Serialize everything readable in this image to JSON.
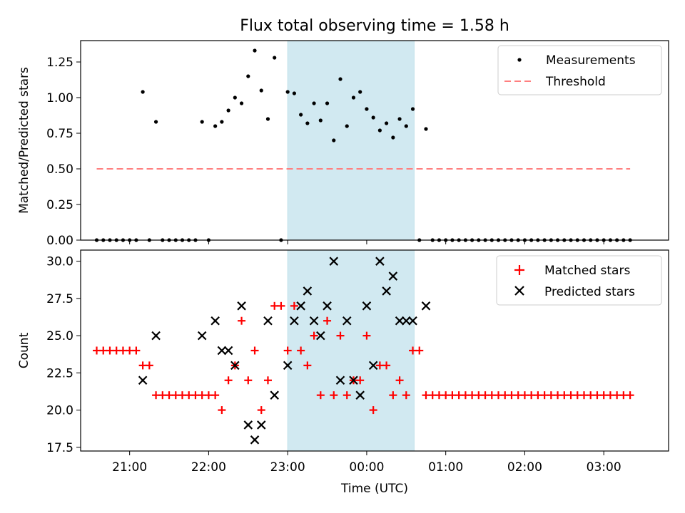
{
  "figure": {
    "title": "Flux total observing time = 1.58 h",
    "xlabel": "Time (UTC)",
    "x_ticks": [
      "21:00",
      "22:00",
      "23:00",
      "00:00",
      "01:00",
      "02:00",
      "03:00"
    ],
    "shaded_span": [
      "23:00",
      "00:36"
    ],
    "shade_color": "#add8e6"
  },
  "chart_data": [
    {
      "type": "scatter",
      "title": "Flux total observing time = 1.58 h",
      "xlabel": "",
      "ylabel": "Matched/Predicted stars",
      "ylim": [
        0,
        1.4
      ],
      "y_ticks": [
        "0.00",
        "0.25",
        "0.50",
        "0.75",
        "1.00",
        "1.25"
      ],
      "legend_position": "top-right",
      "series": [
        {
          "name": "Measurements",
          "type": "scatter",
          "color": "#000000",
          "points": [
            [
              "20:35",
              0
            ],
            [
              "20:40",
              0
            ],
            [
              "20:45",
              0
            ],
            [
              "20:50",
              0
            ],
            [
              "20:55",
              0
            ],
            [
              "21:00",
              0
            ],
            [
              "21:05",
              0
            ],
            [
              "21:10",
              1.04
            ],
            [
              "21:15",
              0
            ],
            [
              "21:20",
              0.83
            ],
            [
              "21:25",
              0
            ],
            [
              "21:30",
              0
            ],
            [
              "21:35",
              0
            ],
            [
              "21:40",
              0
            ],
            [
              "21:45",
              0
            ],
            [
              "21:50",
              0
            ],
            [
              "21:55",
              0.83
            ],
            [
              "22:00",
              0
            ],
            [
              "22:05",
              0.8
            ],
            [
              "22:10",
              0.83
            ],
            [
              "22:15",
              0.91
            ],
            [
              "22:20",
              1.0
            ],
            [
              "22:25",
              0.96
            ],
            [
              "22:30",
              1.15
            ],
            [
              "22:35",
              1.33
            ],
            [
              "22:40",
              1.05
            ],
            [
              "22:45",
              0.85
            ],
            [
              "22:50",
              1.28
            ],
            [
              "22:55",
              0
            ],
            [
              "23:00",
              1.04
            ],
            [
              "23:05",
              1.03
            ],
            [
              "23:10",
              0.88
            ],
            [
              "23:15",
              0.82
            ],
            [
              "23:20",
              0.96
            ],
            [
              "23:25",
              0.84
            ],
            [
              "23:30",
              0.96
            ],
            [
              "23:35",
              0.7
            ],
            [
              "23:40",
              1.13
            ],
            [
              "23:45",
              0.8
            ],
            [
              "23:50",
              1.0
            ],
            [
              "23:55",
              1.04
            ],
            [
              "00:00",
              0.92
            ],
            [
              "00:05",
              0.86
            ],
            [
              "00:10",
              0.77
            ],
            [
              "00:15",
              0.82
            ],
            [
              "00:20",
              0.72
            ],
            [
              "00:25",
              0.85
            ],
            [
              "00:30",
              0.8
            ],
            [
              "00:35",
              0.92
            ],
            [
              "00:40",
              0
            ],
            [
              "00:45",
              0.78
            ],
            [
              "00:50",
              0
            ],
            [
              "00:55",
              0
            ],
            [
              "01:00",
              0
            ],
            [
              "01:05",
              0
            ],
            [
              "01:10",
              0
            ],
            [
              "01:15",
              0
            ],
            [
              "01:20",
              0
            ],
            [
              "01:25",
              0
            ],
            [
              "01:30",
              0
            ],
            [
              "01:35",
              0
            ],
            [
              "01:40",
              0
            ],
            [
              "01:45",
              0
            ],
            [
              "01:50",
              0
            ],
            [
              "01:55",
              0
            ],
            [
              "02:00",
              0
            ],
            [
              "02:05",
              0
            ],
            [
              "02:10",
              0
            ],
            [
              "02:15",
              0
            ],
            [
              "02:20",
              0
            ],
            [
              "02:25",
              0
            ],
            [
              "02:30",
              0
            ],
            [
              "02:35",
              0
            ],
            [
              "02:40",
              0
            ],
            [
              "02:45",
              0
            ],
            [
              "02:50",
              0
            ],
            [
              "02:55",
              0
            ],
            [
              "03:00",
              0
            ],
            [
              "03:05",
              0
            ],
            [
              "03:10",
              0
            ],
            [
              "03:15",
              0
            ],
            [
              "03:20",
              0
            ]
          ]
        },
        {
          "name": "Threshold",
          "type": "line",
          "style": "dashed",
          "color": "#ff7f7f",
          "points": [
            [
              "20:35",
              0.5
            ],
            [
              "03:20",
              0.5
            ]
          ]
        }
      ]
    },
    {
      "type": "scatter",
      "xlabel": "Time (UTC)",
      "ylabel": "Count",
      "ylim": [
        17.25,
        30.75
      ],
      "y_ticks": [
        "17.5",
        "20.0",
        "22.5",
        "25.0",
        "27.5",
        "30.0"
      ],
      "legend_position": "top-right",
      "series": [
        {
          "name": "Matched stars",
          "marker": "plus",
          "color": "#ff0000",
          "points": [
            [
              "20:35",
              24
            ],
            [
              "20:40",
              24
            ],
            [
              "20:45",
              24
            ],
            [
              "20:50",
              24
            ],
            [
              "20:55",
              24
            ],
            [
              "21:00",
              24
            ],
            [
              "21:05",
              24
            ],
            [
              "21:10",
              23
            ],
            [
              "21:15",
              23
            ],
            [
              "21:20",
              21
            ],
            [
              "21:25",
              21
            ],
            [
              "21:30",
              21
            ],
            [
              "21:35",
              21
            ],
            [
              "21:40",
              21
            ],
            [
              "21:45",
              21
            ],
            [
              "21:50",
              21
            ],
            [
              "21:55",
              21
            ],
            [
              "22:00",
              21
            ],
            [
              "22:05",
              21
            ],
            [
              "22:10",
              20
            ],
            [
              "22:15",
              22
            ],
            [
              "22:20",
              23
            ],
            [
              "22:25",
              26
            ],
            [
              "22:30",
              22
            ],
            [
              "22:35",
              24
            ],
            [
              "22:40",
              20
            ],
            [
              "22:45",
              22
            ],
            [
              "22:50",
              27
            ],
            [
              "22:55",
              27
            ],
            [
              "23:00",
              24
            ],
            [
              "23:05",
              27
            ],
            [
              "23:10",
              24
            ],
            [
              "23:15",
              23
            ],
            [
              "23:20",
              25
            ],
            [
              "23:25",
              21
            ],
            [
              "23:30",
              26
            ],
            [
              "23:35",
              21
            ],
            [
              "23:40",
              25
            ],
            [
              "23:45",
              21
            ],
            [
              "23:50",
              22
            ],
            [
              "23:55",
              22
            ],
            [
              "00:00",
              25
            ],
            [
              "00:05",
              20
            ],
            [
              "00:10",
              23
            ],
            [
              "00:15",
              23
            ],
            [
              "00:20",
              21
            ],
            [
              "00:25",
              22
            ],
            [
              "00:30",
              21
            ],
            [
              "00:35",
              24
            ],
            [
              "00:40",
              24
            ],
            [
              "00:45",
              21
            ],
            [
              "00:50",
              21
            ],
            [
              "00:55",
              21
            ],
            [
              "01:00",
              21
            ],
            [
              "01:05",
              21
            ],
            [
              "01:10",
              21
            ],
            [
              "01:15",
              21
            ],
            [
              "01:20",
              21
            ],
            [
              "01:25",
              21
            ],
            [
              "01:30",
              21
            ],
            [
              "01:35",
              21
            ],
            [
              "01:40",
              21
            ],
            [
              "01:45",
              21
            ],
            [
              "01:50",
              21
            ],
            [
              "01:55",
              21
            ],
            [
              "02:00",
              21
            ],
            [
              "02:05",
              21
            ],
            [
              "02:10",
              21
            ],
            [
              "02:15",
              21
            ],
            [
              "02:20",
              21
            ],
            [
              "02:25",
              21
            ],
            [
              "02:30",
              21
            ],
            [
              "02:35",
              21
            ],
            [
              "02:40",
              21
            ],
            [
              "02:45",
              21
            ],
            [
              "02:50",
              21
            ],
            [
              "02:55",
              21
            ],
            [
              "03:00",
              21
            ],
            [
              "03:05",
              21
            ],
            [
              "03:10",
              21
            ],
            [
              "03:15",
              21
            ],
            [
              "03:20",
              21
            ]
          ]
        },
        {
          "name": "Predicted stars",
          "marker": "x",
          "color": "#000000",
          "points": [
            [
              "21:10",
              22
            ],
            [
              "21:20",
              25
            ],
            [
              "21:55",
              25
            ],
            [
              "22:05",
              26
            ],
            [
              "22:10",
              24
            ],
            [
              "22:15",
              24
            ],
            [
              "22:20",
              23
            ],
            [
              "22:25",
              27
            ],
            [
              "22:30",
              19
            ],
            [
              "22:35",
              18
            ],
            [
              "22:40",
              19
            ],
            [
              "22:45",
              26
            ],
            [
              "22:50",
              21
            ],
            [
              "23:00",
              23
            ],
            [
              "23:05",
              26
            ],
            [
              "23:10",
              27
            ],
            [
              "23:15",
              28
            ],
            [
              "23:20",
              26
            ],
            [
              "23:25",
              25
            ],
            [
              "23:30",
              27
            ],
            [
              "23:35",
              30
            ],
            [
              "23:40",
              22
            ],
            [
              "23:45",
              26
            ],
            [
              "23:50",
              22
            ],
            [
              "23:55",
              21
            ],
            [
              "00:00",
              27
            ],
            [
              "00:05",
              23
            ],
            [
              "00:10",
              30
            ],
            [
              "00:15",
              28
            ],
            [
              "00:20",
              29
            ],
            [
              "00:25",
              26
            ],
            [
              "00:30",
              26
            ],
            [
              "00:35",
              26
            ],
            [
              "00:45",
              27
            ]
          ]
        }
      ]
    }
  ]
}
